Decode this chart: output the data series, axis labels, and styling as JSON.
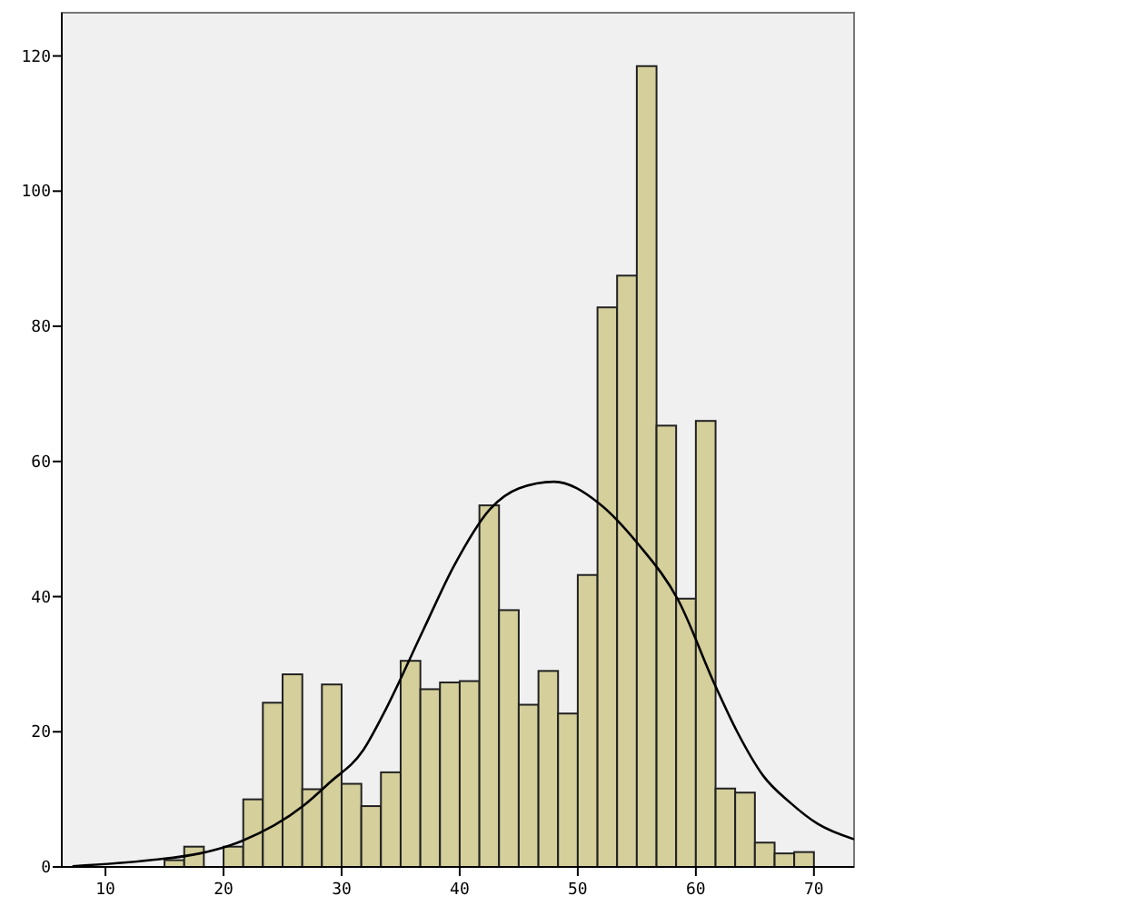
{
  "chart_data": {
    "type": "histogram",
    "xlim": [
      6.3,
      73.4
    ],
    "ylim": [
      0,
      126.4
    ],
    "xticks": [
      10,
      20,
      30,
      40,
      50,
      60,
      70
    ],
    "yticks": [
      0,
      20,
      40,
      60,
      80,
      100,
      120
    ],
    "grid": false,
    "color": "#d4cf9b",
    "bins": [
      15,
      16.67,
      18.33,
      20,
      21.67,
      23.33,
      25,
      26.67,
      28.33,
      30,
      31.67,
      33.33,
      35,
      36.67,
      38.33,
      40,
      41.67,
      43.33,
      45,
      46.67,
      48.33,
      50,
      51.67,
      53.33,
      55,
      56.67,
      58.33,
      60,
      61.67,
      63.33,
      65,
      66.67,
      68.33,
      70
    ],
    "values": [
      1,
      3,
      0,
      3,
      10,
      24.3,
      28.5,
      11.5,
      27,
      12.3,
      9,
      14,
      30.5,
      26.3,
      27.3,
      27.5,
      53.5,
      38,
      24,
      29,
      22.7,
      43.2,
      82.8,
      87.5,
      118.5,
      65.3,
      39.7,
      66,
      11.6,
      11,
      3.6,
      2,
      2.2
    ],
    "series": [
      {
        "type": "line",
        "color": "#000000",
        "x": [
          7.2,
          13.8,
          18,
          21.5,
          26.8,
          29,
          31.8,
          33.5,
          36.9,
          39.5,
          42.6,
          45,
          48,
          51.8,
          55.2,
          58.5,
          61.6,
          63.5,
          65.7,
          68,
          70.3,
          73.4
        ],
        "values": [
          0.1,
          1,
          2,
          3.8,
          9.1,
          12.5,
          17.2,
          22.5,
          35,
          44.5,
          53,
          56,
          57,
          53.8,
          47.6,
          39.5,
          27,
          20,
          13.5,
          9.5,
          6.4,
          4.1
        ]
      }
    ]
  }
}
